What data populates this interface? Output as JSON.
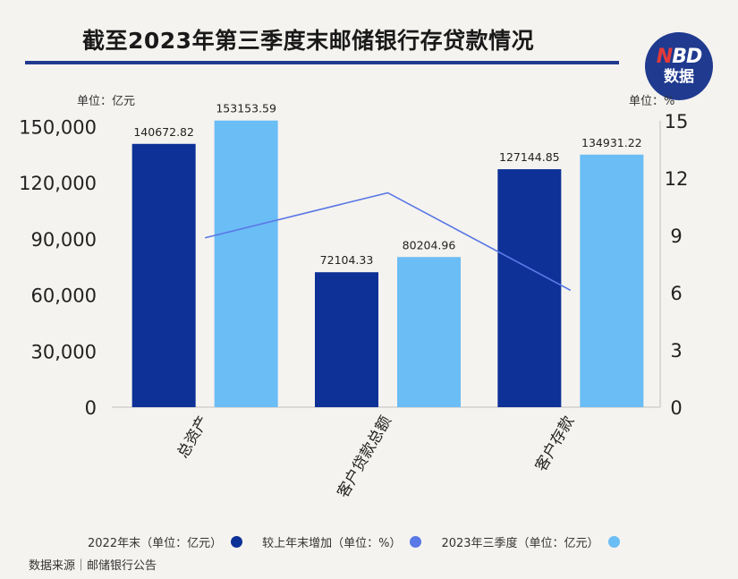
{
  "header": {
    "title": "截至2023年第三季度末邮储银行存贷款情况",
    "logo_brand": "NBD",
    "logo_sub": "数据"
  },
  "chart_data": {
    "type": "bar",
    "categories": [
      "总资产",
      "客户贷款总额",
      "客户存款"
    ],
    "series": [
      {
        "name": "2022年末（单位：亿元）",
        "values": [
          140672.82,
          72104.33,
          127144.85
        ],
        "color": "#0d3196",
        "axis": "left",
        "kind": "bar"
      },
      {
        "name": "2023年三季度（单位：亿元）",
        "values": [
          153153.59,
          80204.96,
          134931.22
        ],
        "color": "#6bbdf5",
        "axis": "left",
        "kind": "bar"
      },
      {
        "name": "较上年末增加（单位：%）",
        "values": [
          8.87,
          11.23,
          6.12
        ],
        "color": "#5a78e6",
        "axis": "right",
        "kind": "line"
      }
    ],
    "y_left": {
      "unit_label": "单位：亿元",
      "ticks": [
        0,
        30000,
        60000,
        90000,
        120000,
        150000
      ],
      "tick_labels": [
        "0",
        "30,000",
        "60,000",
        "90,000",
        "120,000",
        "150,000"
      ],
      "range": [
        0,
        153000
      ]
    },
    "y_right": {
      "unit_label": "单位：%",
      "ticks": [
        0,
        3,
        6,
        9,
        12,
        15
      ],
      "tick_labels": [
        "0",
        "3",
        "6",
        "9",
        "12",
        "15"
      ],
      "range": [
        0,
        15
      ]
    },
    "data_labels": [
      [
        "140672.82",
        "72104.33",
        "127144.85"
      ],
      [
        "153153.59",
        "80204.96",
        "134931.22"
      ]
    ],
    "legend_position": "bottom",
    "grid": false
  },
  "legend": {
    "items": [
      {
        "label": "2022年末（单位：亿元）",
        "color": "#0d3196"
      },
      {
        "label": "较上年末增加（单位：%）",
        "color": "#5a78e6"
      },
      {
        "label": "2023年三季度（单位：亿元）",
        "color": "#6bbdf5"
      }
    ]
  },
  "footer": {
    "source": "数据来源｜邮储银行公告"
  }
}
